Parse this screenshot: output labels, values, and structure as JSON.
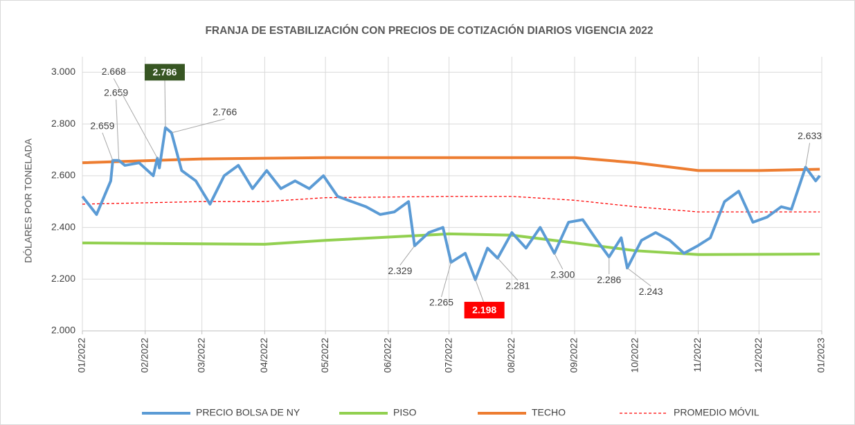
{
  "chart_data": {
    "type": "line",
    "title": "FRANJA DE ESTABILIZACIÓN CON PRECIOS DE COTIZACIÓN DIARIOS VIGENCIA 2022",
    "y_label": "DÓLARES POR TONELADA",
    "xlim": [
      0,
      365
    ],
    "xticks": [
      {
        "value": 0,
        "label": "01/2022"
      },
      {
        "value": 31,
        "label": "02/2022"
      },
      {
        "value": 59,
        "label": "03/2022"
      },
      {
        "value": 90,
        "label": "04/2022"
      },
      {
        "value": 120,
        "label": "05/2022"
      },
      {
        "value": 151,
        "label": "06/2022"
      },
      {
        "value": 181,
        "label": "07/2022"
      },
      {
        "value": 212,
        "label": "08/2022"
      },
      {
        "value": 243,
        "label": "09/2022"
      },
      {
        "value": 273,
        "label": "10/2022"
      },
      {
        "value": 304,
        "label": "11/2022"
      },
      {
        "value": 334,
        "label": "12/2022"
      },
      {
        "value": 365,
        "label": "01/2023"
      }
    ],
    "ylim": [
      2,
      3.06
    ],
    "yticks": [
      {
        "value": 2,
        "label": "2.000"
      },
      {
        "value": 2.2,
        "label": "2.200"
      },
      {
        "value": 2.4,
        "label": "2.400"
      },
      {
        "value": 2.6,
        "label": "2.600"
      },
      {
        "value": 2.8,
        "label": "2.800"
      },
      {
        "value": 3,
        "label": "3.000"
      }
    ],
    "grid": true,
    "legend": "bottom",
    "series": [
      {
        "name": "PRECIO BOLSA DE NY",
        "color": "#5b9bd5",
        "width": 4,
        "dash": false,
        "x": [
          0,
          7,
          14,
          15,
          18,
          21,
          28,
          35,
          37,
          38,
          41,
          44,
          49,
          56,
          63,
          70,
          77,
          84,
          91,
          98,
          105,
          112,
          119,
          126,
          133,
          140,
          147,
          154,
          161,
          164,
          171,
          178,
          182,
          189,
          194,
          200,
          205,
          212,
          219,
          226,
          233,
          240,
          247,
          254,
          260,
          266,
          269,
          276,
          283,
          290,
          297,
          304,
          310,
          317,
          324,
          331,
          338,
          345,
          350,
          357,
          362,
          364
        ],
        "values": [
          2.52,
          2.45,
          2.58,
          2.659,
          2.659,
          2.64,
          2.65,
          2.6,
          2.668,
          2.63,
          2.786,
          2.766,
          2.62,
          2.58,
          2.49,
          2.6,
          2.64,
          2.55,
          2.62,
          2.55,
          2.58,
          2.55,
          2.6,
          2.52,
          2.5,
          2.48,
          2.45,
          2.46,
          2.5,
          2.329,
          2.38,
          2.4,
          2.265,
          2.3,
          2.198,
          2.32,
          2.281,
          2.38,
          2.32,
          2.4,
          2.3,
          2.42,
          2.43,
          2.35,
          2.286,
          2.36,
          2.243,
          2.35,
          2.38,
          2.35,
          2.3,
          2.33,
          2.36,
          2.5,
          2.54,
          2.42,
          2.44,
          2.48,
          2.47,
          2.633,
          2.58,
          2.6
        ]
      },
      {
        "name": "PISO",
        "color": "#92d050",
        "width": 4,
        "dash": false,
        "x": [
          0,
          90,
          120,
          181,
          212,
          243,
          273,
          304,
          364
        ],
        "values": [
          2.34,
          2.335,
          2.35,
          2.375,
          2.37,
          2.34,
          2.31,
          2.295,
          2.297
        ]
      },
      {
        "name": "TECHO",
        "color": "#ed7d31",
        "width": 4,
        "dash": false,
        "x": [
          0,
          59,
          120,
          181,
          243,
          273,
          304,
          334,
          364
        ],
        "values": [
          2.65,
          2.665,
          2.67,
          2.67,
          2.67,
          2.65,
          2.62,
          2.62,
          2.625
        ]
      },
      {
        "name": "PROMEDIO MÓVIL",
        "color": "#ff0000",
        "width": 1.3,
        "dash": true,
        "x": [
          0,
          59,
          90,
          120,
          181,
          212,
          243,
          273,
          304,
          364
        ],
        "values": [
          2.49,
          2.5,
          2.5,
          2.515,
          2.52,
          2.52,
          2.505,
          2.48,
          2.46,
          2.46
        ]
      }
    ],
    "annotations": [
      {
        "label": "2.659",
        "x": 15,
        "value": 2.659
      },
      {
        "label": "2.659",
        "x": 18,
        "value": 2.659
      },
      {
        "label": "2.668",
        "x": 37,
        "value": 2.668
      },
      {
        "label": "2.786",
        "x": 41,
        "value": 2.786,
        "color": "#375623"
      },
      {
        "label": "2.766",
        "x": 44,
        "value": 2.766
      },
      {
        "label": "2.329",
        "x": 164,
        "value": 2.329
      },
      {
        "label": "2.265",
        "x": 182,
        "value": 2.265
      },
      {
        "label": "2.198",
        "x": 194,
        "value": 2.198,
        "color": "#ff0000"
      },
      {
        "label": "2.281",
        "x": 205,
        "value": 2.281
      },
      {
        "label": "2.300",
        "x": 233,
        "value": 2.3
      },
      {
        "label": "2.286",
        "x": 260,
        "value": 2.286
      },
      {
        "label": "2.243",
        "x": 269,
        "value": 2.243
      },
      {
        "label": "2.633",
        "x": 357,
        "value": 2.633
      }
    ]
  }
}
